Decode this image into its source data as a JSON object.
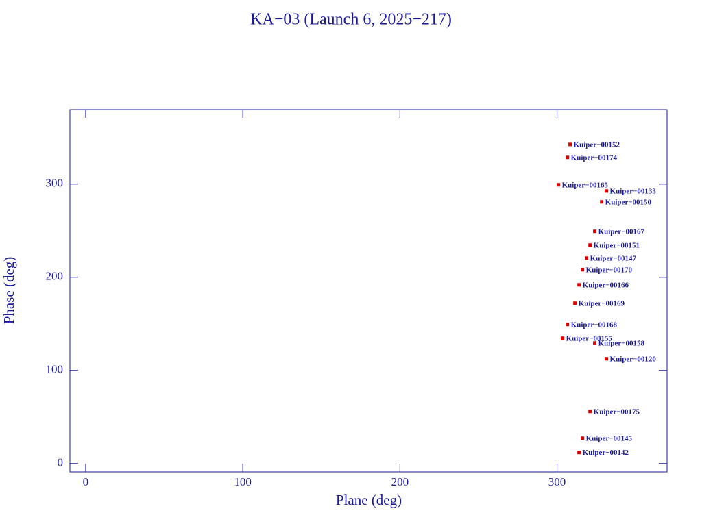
{
  "chart_data": {
    "type": "scatter",
    "title": "KA−03 (Launch 6, 2025−217)",
    "x_label": "Plane (deg)",
    "y_label": "Phase (deg)",
    "xlim": [
      -10,
      370
    ],
    "ylim": [
      -9,
      380
    ],
    "xticks": [
      0,
      100,
      200,
      300
    ],
    "yticks": [
      0,
      100,
      200,
      300
    ],
    "marker_color": "#e00000",
    "text_color": "#1a1a9a",
    "series": [
      {
        "labels": [
          "Kuiper−00152",
          "Kuiper−00174",
          "Kuiper−00165",
          "Kuiper−00133",
          "Kuiper−00150",
          "Kuiper−00167",
          "Kuiper−00151",
          "Kuiper−00147",
          "Kuiper−00170",
          "Kuiper−00166",
          "Kuiper−00169",
          "Kuiper−00168",
          "Kuiper−00155",
          "Kuiper−00158",
          "Kuiper−00120",
          "Kuiper−00175",
          "Kuiper−00145",
          "Kuiper−00142"
        ],
        "x": [
          308.3,
          306.6,
          300.9,
          331.4,
          328.4,
          324.0,
          321.0,
          318.8,
          316.2,
          314.0,
          311.4,
          306.6,
          303.5,
          324.0,
          331.4,
          321.0,
          316.2,
          314.0
        ],
        "values": [
          342.6,
          328.7,
          299.3,
          292.6,
          280.9,
          249.3,
          234.6,
          220.6,
          208.1,
          191.9,
          172.1,
          149.3,
          134.6,
          129.4,
          112.5,
          55.9,
          27.2,
          11.8
        ]
      }
    ]
  }
}
